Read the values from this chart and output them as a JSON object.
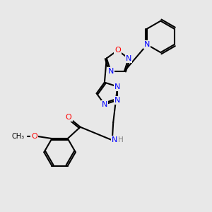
{
  "bg_color": "#e8e8e8",
  "bond_color": "#000000",
  "bond_width": 1.5,
  "atom_colors": {
    "N": "#0000FF",
    "O": "#FF0000",
    "C": "#000000",
    "H": "#808080"
  },
  "font_size": 7.5,
  "figsize": [
    3.0,
    3.0
  ],
  "dpi": 100
}
